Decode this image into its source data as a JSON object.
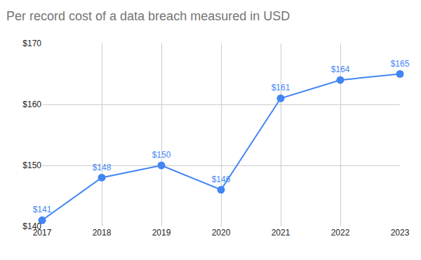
{
  "chart_data": {
    "type": "line",
    "title": "Per record cost of a data breach measured in USD",
    "x": [
      2017,
      2018,
      2019,
      2020,
      2021,
      2022,
      2023
    ],
    "values": [
      141,
      148,
      150,
      146,
      161,
      164,
      165
    ],
    "value_labels": [
      "$141",
      "$148",
      "$150",
      "$146",
      "$161",
      "$164",
      "$165"
    ],
    "color": "#4285f4",
    "marker": "circle",
    "data_labels": true,
    "grid": true,
    "xlim": [
      2017,
      2023
    ],
    "xticks": [
      2017,
      2018,
      2019,
      2020,
      2021,
      2022,
      2023
    ],
    "ylim": [
      140,
      170
    ],
    "yticks": [
      {
        "value": 140,
        "label": "$140"
      },
      {
        "value": 150,
        "label": "$150"
      },
      {
        "value": 160,
        "label": "$160"
      },
      {
        "value": 170,
        "label": "$170"
      }
    ]
  }
}
